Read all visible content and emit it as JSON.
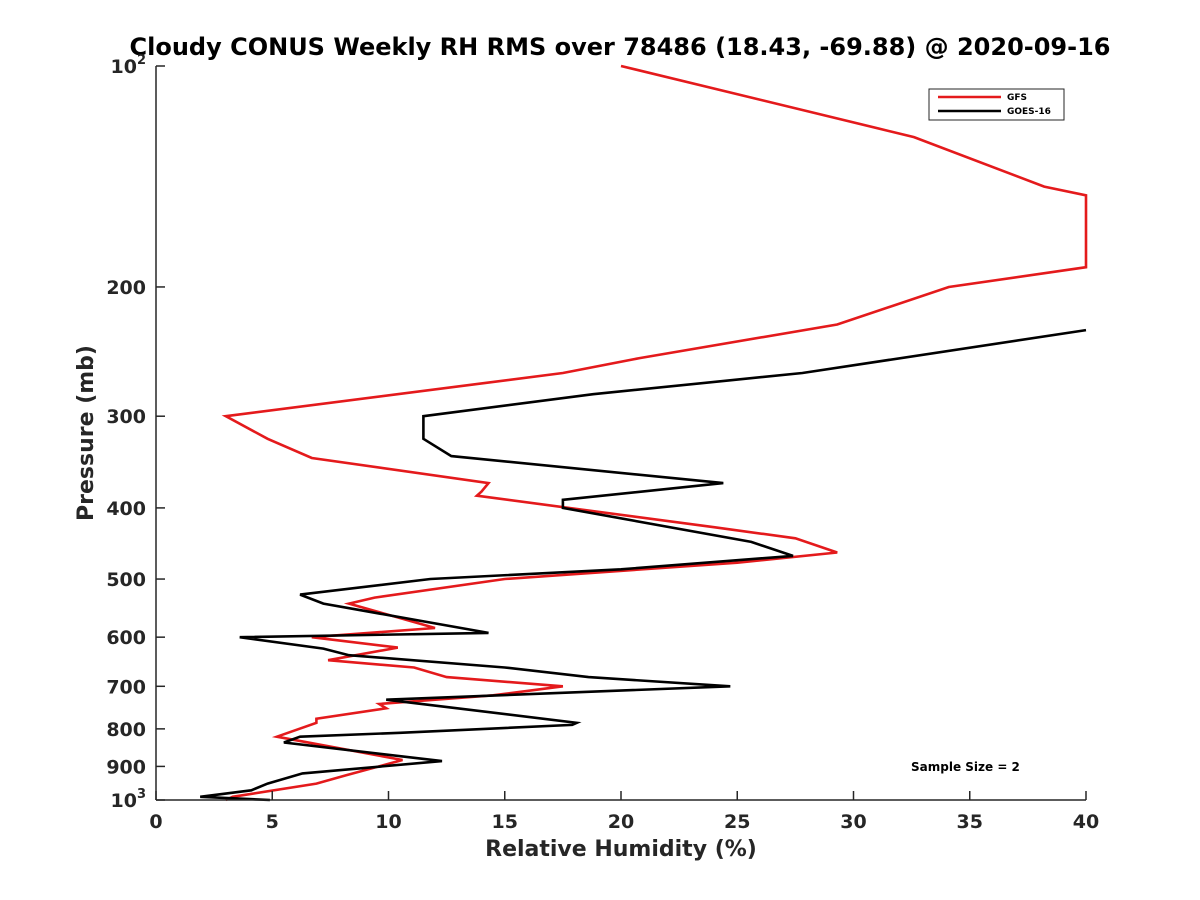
{
  "chart_data": {
    "type": "line",
    "title": "Cloudy CONUS Weekly RH RMS over 78486 (18.43, -69.88) @ 2020-09-16",
    "xlabel": "Relative Humidity (%)",
    "ylabel": "Pressure (mb)",
    "xlim": [
      0,
      40
    ],
    "ylim": [
      100,
      1000
    ],
    "y_scale": "log",
    "y_reversed": true,
    "grid": false,
    "legend_position": "top-right",
    "x_ticks": [
      "0",
      "5",
      "10",
      "15",
      "20",
      "25",
      "30",
      "35",
      "40"
    ],
    "y_ticks": [
      {
        "value": 100,
        "base": "10",
        "exp": "2"
      },
      {
        "value": 200,
        "label": "200"
      },
      {
        "value": 300,
        "label": "300"
      },
      {
        "value": 400,
        "label": "400"
      },
      {
        "value": 500,
        "label": "500"
      },
      {
        "value": 600,
        "label": "600"
      },
      {
        "value": 700,
        "label": "700"
      },
      {
        "value": 800,
        "label": "800"
      },
      {
        "value": 900,
        "label": "900"
      },
      {
        "value": 1000,
        "base": "10",
        "exp": "3"
      }
    ],
    "series": [
      {
        "name": "GFS",
        "color": "#e41a1c",
        "points": [
          [
            20,
            100
          ],
          [
            32.6,
            125
          ],
          [
            38.2,
            146
          ],
          [
            40,
            150
          ],
          [
            40,
            188
          ],
          [
            34.1,
            200
          ],
          [
            29.3,
            225
          ],
          [
            20.8,
            250
          ],
          [
            17.5,
            262
          ],
          [
            3.0,
            300
          ],
          [
            4.8,
            322
          ],
          [
            6.7,
            342
          ],
          [
            14.3,
            370
          ],
          [
            14.0,
            380
          ],
          [
            13.8,
            385
          ],
          [
            24.0,
            425
          ],
          [
            27.5,
            440
          ],
          [
            29.3,
            460
          ],
          [
            25.0,
            475
          ],
          [
            15.0,
            500
          ],
          [
            9.4,
            530
          ],
          [
            8.3,
            540
          ],
          [
            12.0,
            583
          ],
          [
            6.7,
            600
          ],
          [
            10.4,
            620
          ],
          [
            7.4,
            645
          ],
          [
            11.1,
            660
          ],
          [
            12.5,
            680
          ],
          [
            17.5,
            700
          ],
          [
            14.5,
            720
          ],
          [
            9.6,
            740
          ],
          [
            9.9,
            750
          ],
          [
            6.9,
            775
          ],
          [
            6.9,
            785
          ],
          [
            5.2,
            820
          ],
          [
            10.6,
            882
          ],
          [
            8.2,
            925
          ],
          [
            6.9,
            950
          ],
          [
            3.3,
            990
          ],
          [
            3.0,
            1000
          ]
        ]
      },
      {
        "name": "GOES-16",
        "color": "#000000",
        "points": [
          [
            40,
            229
          ],
          [
            27.8,
            262
          ],
          [
            18.8,
            280
          ],
          [
            11.5,
            300
          ],
          [
            11.5,
            322
          ],
          [
            12.7,
            340
          ],
          [
            24.4,
            370
          ],
          [
            17.5,
            390
          ],
          [
            17.5,
            400
          ],
          [
            25.6,
            445
          ],
          [
            27.4,
            465
          ],
          [
            20.0,
            485
          ],
          [
            11.8,
            500
          ],
          [
            6.2,
            525
          ],
          [
            7.2,
            540
          ],
          [
            14.3,
            592
          ],
          [
            3.6,
            600
          ],
          [
            7.2,
            622
          ],
          [
            8.3,
            635
          ],
          [
            15.0,
            660
          ],
          [
            18.6,
            680
          ],
          [
            24.7,
            700
          ],
          [
            9.9,
            730
          ],
          [
            18.1,
            785
          ],
          [
            17.9,
            790
          ],
          [
            10.5,
            810
          ],
          [
            6.2,
            820
          ],
          [
            5.5,
            835
          ],
          [
            12.3,
            885
          ],
          [
            6.3,
            920
          ],
          [
            4.8,
            950
          ],
          [
            4.1,
            970
          ],
          [
            1.9,
            990
          ],
          [
            4.9,
            1000
          ]
        ]
      }
    ],
    "annotations": [
      "Sample Size = 2"
    ]
  }
}
